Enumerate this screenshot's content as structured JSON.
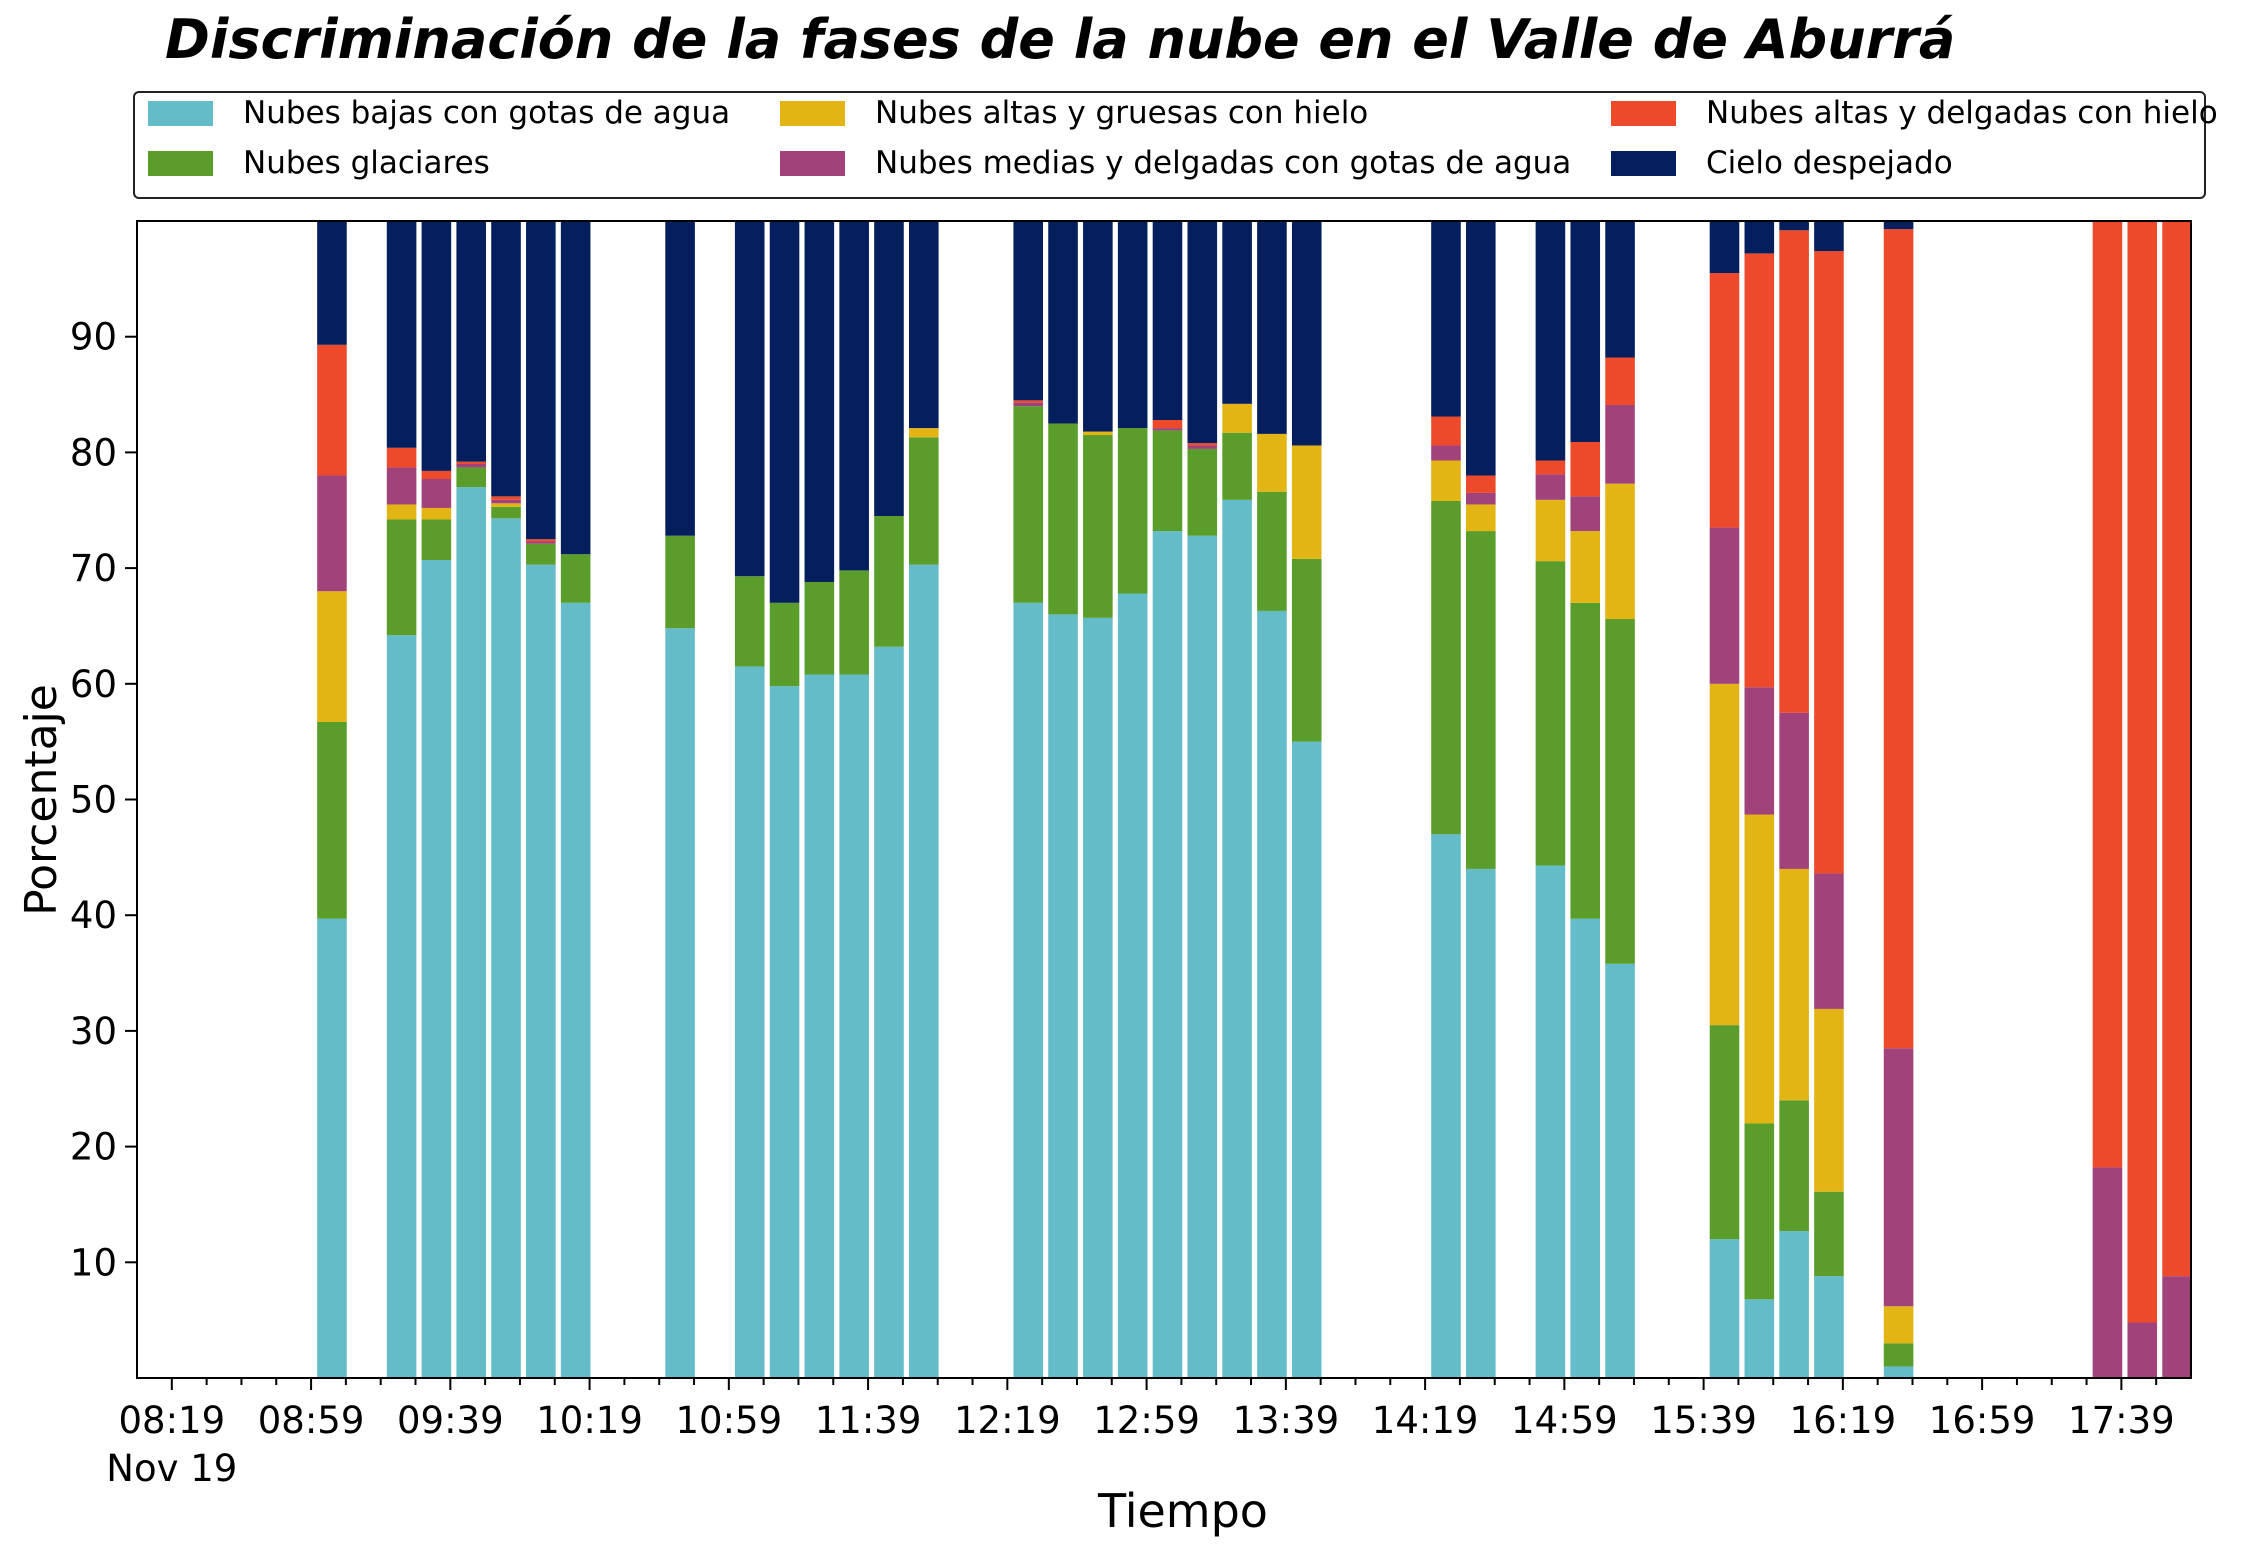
{
  "chart_data": {
    "type": "bar",
    "stacked": true,
    "title": "Discriminación de la fases de la nube en el Valle de Aburrá",
    "xlabel": "Tiempo",
    "ylabel": "Porcentaje",
    "ylim": [
      0,
      100
    ],
    "yticks": [
      10,
      20,
      30,
      40,
      50,
      60,
      70,
      80,
      90
    ],
    "x_unit": "minutes since 08:19",
    "xlim": [
      -10,
      580
    ],
    "bar_width": 8.5,
    "xticks": [
      {
        "pos": 0,
        "label": "08:19",
        "sublabel": "Nov 19"
      },
      {
        "pos": 40,
        "label": "08:59"
      },
      {
        "pos": 80,
        "label": "09:39"
      },
      {
        "pos": 120,
        "label": "10:19"
      },
      {
        "pos": 160,
        "label": "10:59"
      },
      {
        "pos": 200,
        "label": "11:39"
      },
      {
        "pos": 240,
        "label": "12:19"
      },
      {
        "pos": 280,
        "label": "12:59"
      },
      {
        "pos": 320,
        "label": "13:39"
      },
      {
        "pos": 360,
        "label": "14:19"
      },
      {
        "pos": 400,
        "label": "14:59"
      },
      {
        "pos": 440,
        "label": "15:39"
      },
      {
        "pos": 480,
        "label": "16:19"
      },
      {
        "pos": 520,
        "label": "16:59"
      },
      {
        "pos": 560,
        "label": "17:39"
      }
    ],
    "legend_position": "top",
    "series": [
      {
        "name": "Nubes bajas con gotas de agua",
        "color": "#63bcc8"
      },
      {
        "name": "Nubes glaciares",
        "color": "#5a9d2a"
      },
      {
        "name": "Nubes altas y gruesas con hielo",
        "color": "#e2b515"
      },
      {
        "name": "Nubes medias y delgadas con gotas de agua",
        "color": "#a2427a"
      },
      {
        "name": "Nubes altas y delgadas con hielo",
        "color": "#ec4a2b"
      },
      {
        "name": "Cielo despejado",
        "color": "#041e5e"
      }
    ],
    "bars": [
      {
        "x": 46,
        "values": [
          39.7,
          17.0,
          11.3,
          10.0,
          11.3,
          10.7
        ]
      },
      {
        "x": 66,
        "values": [
          64.2,
          10.0,
          1.3,
          3.2,
          1.7,
          19.6
        ]
      },
      {
        "x": 76,
        "values": [
          70.7,
          3.5,
          1.0,
          2.5,
          0.7,
          21.6
        ]
      },
      {
        "x": 86,
        "values": [
          77.0,
          1.7,
          0,
          0.3,
          0.2,
          20.8
        ]
      },
      {
        "x": 96,
        "values": [
          74.3,
          1.0,
          0.3,
          0.3,
          0.3,
          23.8
        ]
      },
      {
        "x": 106,
        "values": [
          70.3,
          1.8,
          0,
          0.2,
          0.2,
          27.5
        ]
      },
      {
        "x": 116,
        "values": [
          67.0,
          4.2,
          0,
          0,
          0,
          28.8
        ]
      },
      {
        "x": 146,
        "values": [
          64.8,
          8.0,
          0,
          0,
          0,
          27.2
        ]
      },
      {
        "x": 166,
        "values": [
          61.5,
          7.8,
          0,
          0,
          0,
          30.7
        ]
      },
      {
        "x": 176,
        "values": [
          59.8,
          7.2,
          0,
          0,
          0,
          33.0
        ]
      },
      {
        "x": 186,
        "values": [
          60.8,
          8.0,
          0,
          0,
          0,
          31.2
        ]
      },
      {
        "x": 196,
        "values": [
          60.8,
          9.0,
          0,
          0,
          0,
          30.2
        ]
      },
      {
        "x": 206,
        "values": [
          63.2,
          11.3,
          0,
          0,
          0,
          25.5
        ]
      },
      {
        "x": 216,
        "values": [
          70.3,
          11.0,
          0.8,
          0,
          0,
          17.9
        ]
      },
      {
        "x": 246,
        "values": [
          67.0,
          17.0,
          0,
          0.3,
          0.2,
          15.5
        ]
      },
      {
        "x": 256,
        "values": [
          66.0,
          16.5,
          0,
          0,
          0,
          17.5
        ]
      },
      {
        "x": 266,
        "values": [
          65.7,
          15.8,
          0.3,
          0,
          0,
          18.2
        ]
      },
      {
        "x": 276,
        "values": [
          67.8,
          14.3,
          0,
          0,
          0,
          17.9
        ]
      },
      {
        "x": 286,
        "values": [
          73.2,
          8.7,
          0,
          0.2,
          0.7,
          17.2
        ]
      },
      {
        "x": 296,
        "values": [
          72.8,
          7.5,
          0,
          0.3,
          0.2,
          19.2
        ]
      },
      {
        "x": 306,
        "values": [
          75.9,
          5.8,
          2.5,
          0,
          0,
          15.8
        ]
      },
      {
        "x": 316,
        "values": [
          66.3,
          10.3,
          5.0,
          0,
          0,
          18.4
        ]
      },
      {
        "x": 326,
        "values": [
          55.0,
          15.8,
          9.8,
          0,
          0,
          19.4
        ]
      },
      {
        "x": 366,
        "values": [
          47.0,
          28.8,
          3.5,
          1.3,
          2.5,
          16.9
        ]
      },
      {
        "x": 376,
        "values": [
          44.0,
          29.2,
          2.3,
          1.0,
          1.5,
          22.0
        ]
      },
      {
        "x": 396,
        "values": [
          44.3,
          26.3,
          5.3,
          2.2,
          1.2,
          20.7
        ]
      },
      {
        "x": 406,
        "values": [
          39.7,
          27.3,
          6.2,
          3.0,
          4.7,
          19.1
        ]
      },
      {
        "x": 416,
        "values": [
          35.8,
          29.8,
          11.7,
          6.8,
          4.1,
          11.8
        ]
      },
      {
        "x": 446,
        "values": [
          12.0,
          18.5,
          29.5,
          13.5,
          22.0,
          4.5
        ]
      },
      {
        "x": 456,
        "values": [
          6.8,
          15.2,
          26.7,
          11.0,
          37.5,
          2.8
        ]
      },
      {
        "x": 466,
        "values": [
          12.7,
          11.3,
          20.0,
          13.5,
          41.7,
          0.8
        ]
      },
      {
        "x": 476,
        "values": [
          8.8,
          7.3,
          15.8,
          11.7,
          53.8,
          2.6
        ]
      },
      {
        "x": 496,
        "values": [
          1.0,
          2.0,
          3.2,
          22.3,
          70.8,
          0.7
        ]
      },
      {
        "x": 556,
        "values": [
          0,
          0,
          0,
          18.2,
          81.8,
          0
        ]
      },
      {
        "x": 566,
        "values": [
          0,
          0,
          0,
          4.8,
          95.2,
          0
        ]
      },
      {
        "x": 576,
        "values": [
          0,
          0,
          0,
          8.8,
          91.2,
          0
        ]
      }
    ]
  }
}
